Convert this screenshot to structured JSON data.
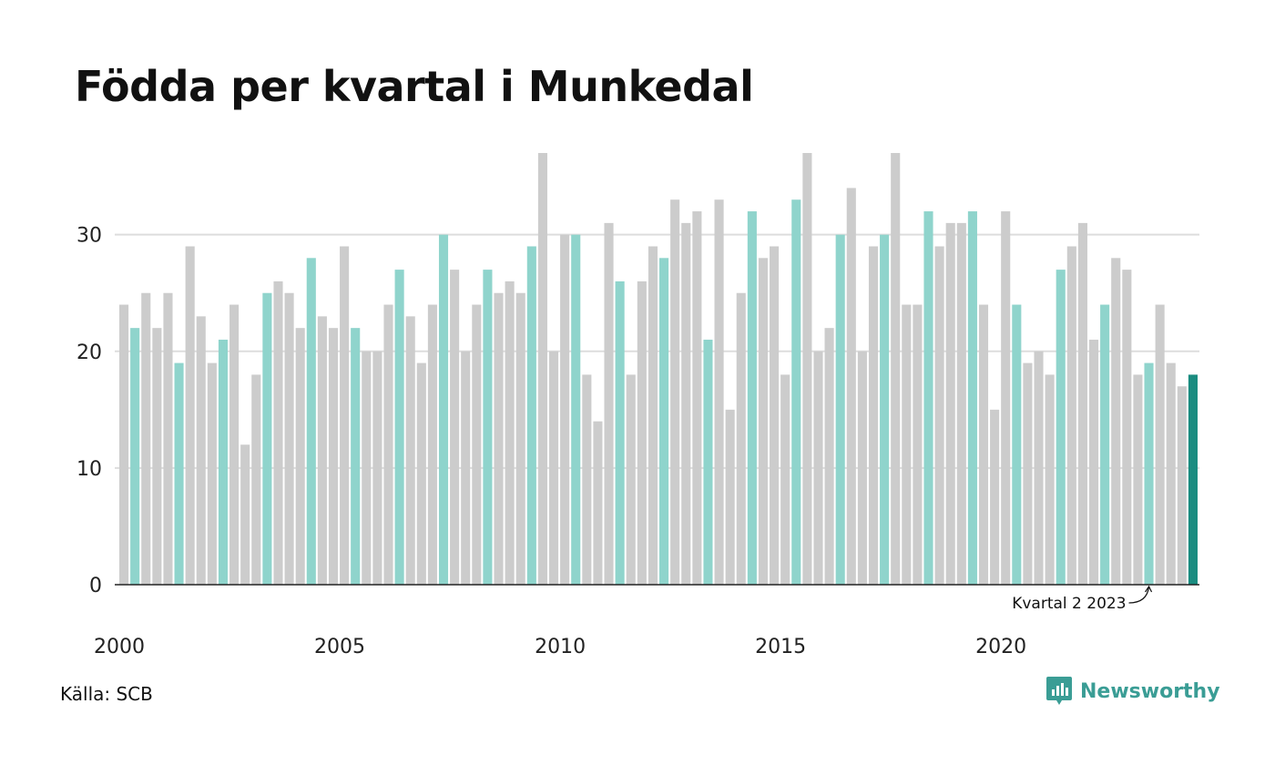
{
  "title": "Födda per kvartal i Munkedal",
  "source": "Källa: SCB",
  "brand": "Newsworthy",
  "colors": {
    "default_bar": "#cccccc",
    "highlight_bar": "#8fd4cc",
    "last_bar": "#1a8c80",
    "grid": "#dddddd",
    "brand": "#3a9d95"
  },
  "chart_data": {
    "type": "bar",
    "title": "Födda per kvartal i Munkedal",
    "xlabel": "",
    "ylabel": "",
    "ylim": [
      0,
      37
    ],
    "y_ticks": [
      0,
      10,
      20,
      30
    ],
    "x_tick_labels": [
      "2000",
      "2005",
      "2010",
      "2015",
      "2020"
    ],
    "annotation": "Kvartal 2 2023",
    "grid": true,
    "highlight": "second quarter of each year",
    "categories": [
      "2000 K1",
      "2000 K2",
      "2000 K3",
      "2000 K4",
      "2001 K1",
      "2001 K2",
      "2001 K3",
      "2001 K4",
      "2002 K1",
      "2002 K2",
      "2002 K3",
      "2002 K4",
      "2003 K1",
      "2003 K2",
      "2003 K3",
      "2003 K4",
      "2004 K1",
      "2004 K2",
      "2004 K3",
      "2004 K4",
      "2005 K1",
      "2005 K2",
      "2005 K3",
      "2005 K4",
      "2006 K1",
      "2006 K2",
      "2006 K3",
      "2006 K4",
      "2007 K1",
      "2007 K2",
      "2007 K3",
      "2007 K4",
      "2008 K1",
      "2008 K2",
      "2008 K3",
      "2008 K4",
      "2009 K1",
      "2009 K2",
      "2009 K3",
      "2009 K4",
      "2010 K1",
      "2010 K2",
      "2010 K3",
      "2010 K4",
      "2011 K1",
      "2011 K2",
      "2011 K3",
      "2011 K4",
      "2012 K1",
      "2012 K2",
      "2012 K3",
      "2012 K4",
      "2013 K1",
      "2013 K2",
      "2013 K3",
      "2013 K4",
      "2014 K1",
      "2014 K2",
      "2014 K3",
      "2014 K4",
      "2015 K1",
      "2015 K2",
      "2015 K3",
      "2015 K4",
      "2016 K1",
      "2016 K2",
      "2016 K3",
      "2016 K4",
      "2017 K1",
      "2017 K2",
      "2017 K3",
      "2017 K4",
      "2018 K1",
      "2018 K2",
      "2018 K3",
      "2018 K4",
      "2019 K1",
      "2019 K2",
      "2019 K3",
      "2019 K4",
      "2020 K1",
      "2020 K2",
      "2020 K3",
      "2020 K4",
      "2021 K1",
      "2021 K2",
      "2021 K3",
      "2021 K4",
      "2022 K1",
      "2022 K2",
      "2022 K3",
      "2022 K4",
      "2023 K1",
      "2023 K2",
      "2023 K3",
      "2023 K4",
      "2024 K1",
      "2024 K2"
    ],
    "values": [
      24,
      22,
      25,
      22,
      25,
      19,
      29,
      23,
      19,
      21,
      24,
      12,
      18,
      25,
      26,
      25,
      22,
      28,
      23,
      22,
      29,
      22,
      20,
      20,
      24,
      27,
      23,
      19,
      24,
      30,
      27,
      20,
      24,
      27,
      25,
      26,
      25,
      29,
      37,
      20,
      30,
      30,
      18,
      14,
      31,
      26,
      18,
      26,
      29,
      28,
      33,
      31,
      32,
      21,
      33,
      15,
      25,
      32,
      28,
      29,
      18,
      33,
      37,
      20,
      22,
      30,
      34,
      20,
      29,
      30,
      37,
      24,
      24,
      32,
      29,
      31,
      31,
      32,
      24,
      15,
      32,
      24,
      19,
      20,
      18,
      27,
      29,
      31,
      21,
      24,
      28,
      27,
      18,
      19,
      24,
      19,
      17,
      18
    ]
  }
}
